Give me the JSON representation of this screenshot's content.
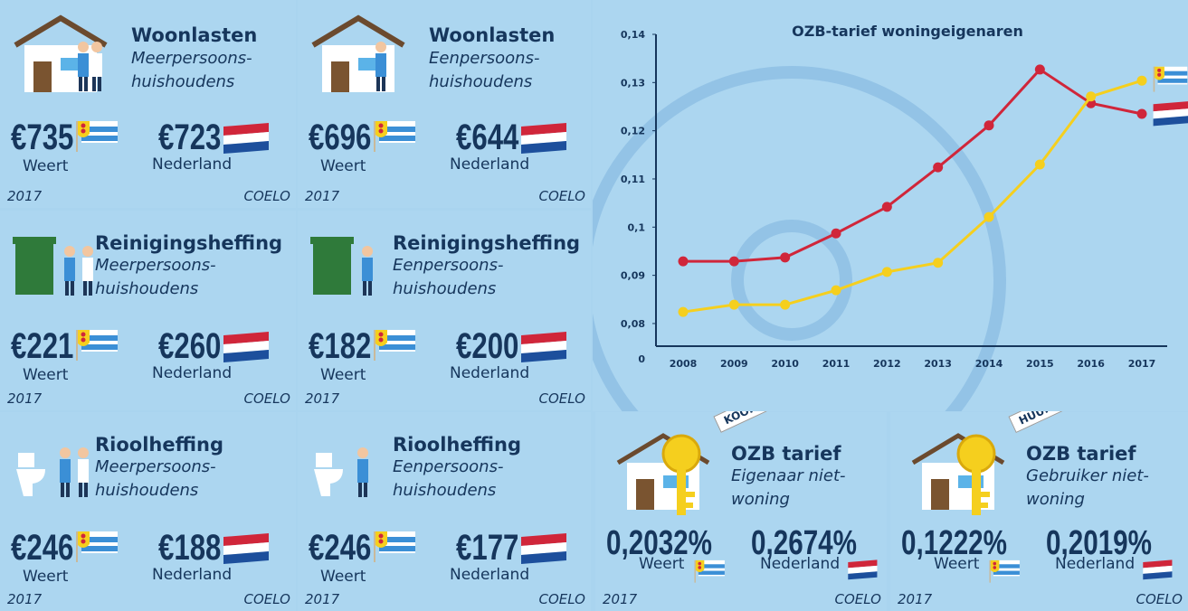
{
  "tiles": [
    {
      "title": "Woonlasten",
      "subtitle": [
        "Meerpersoons-",
        "huishoudens"
      ],
      "weert_amount": "€735",
      "weert_label": "Weert",
      "nl_amount": "€723",
      "nl_label": "Nederland",
      "year": "2017",
      "source": "COELO"
    },
    {
      "title": "Woonlasten",
      "subtitle": [
        "Eenpersoons-",
        "huishoudens"
      ],
      "weert_amount": "€696",
      "weert_label": "Weert",
      "nl_amount": "€644",
      "nl_label": "Nederland",
      "year": "2017",
      "source": "COELO"
    },
    {
      "title": "Reinigingsheffing",
      "subtitle": [
        "Meerpersoons-",
        "huishoudens"
      ],
      "weert_amount": "€221",
      "weert_label": "Weert",
      "nl_amount": "€260",
      "nl_label": "Nederland",
      "year": "2017",
      "source": "COELO"
    },
    {
      "title": "Reinigingsheffing",
      "subtitle": [
        "Eenpersoons-",
        "huishoudens"
      ],
      "weert_amount": "€182",
      "weert_label": "Weert",
      "nl_amount": "€200",
      "nl_label": "Nederland",
      "year": "2017",
      "source": "COELO"
    },
    {
      "title": "Rioolheffing",
      "subtitle": [
        "Meerpersoons-",
        "huishoudens"
      ],
      "weert_amount": "€246",
      "weert_label": "Weert",
      "nl_amount": "€188",
      "nl_label": "Nederland",
      "year": "2017",
      "source": "COELO"
    },
    {
      "title": "Rioolheffing",
      "subtitle": [
        "Eenpersoons-",
        "huishoudens"
      ],
      "weert_amount": "€246",
      "weert_label": "Weert",
      "nl_amount": "€177",
      "nl_label": "Nederland",
      "year": "2017",
      "source": "COELO"
    }
  ],
  "ozb_tiles": [
    {
      "tag": "KOOP",
      "title": "OZB tarief",
      "subtitle": [
        "Eigenaar niet-",
        "woning"
      ],
      "weert_amount": "0,2032%",
      "weert_label": "Weert",
      "nl_amount": "0,2674%",
      "nl_label": "Nederland",
      "year": "2017",
      "source": "COELO"
    },
    {
      "tag": "HUUR",
      "title": "OZB tarief",
      "subtitle": [
        "Gebruiker niet-",
        "woning"
      ],
      "weert_amount": "0,1222%",
      "weert_label": "Weert",
      "nl_amount": "0,2019%",
      "nl_label": "Nederland",
      "year": "2017",
      "source": "COELO"
    }
  ],
  "chart_data": {
    "type": "line",
    "title": "OZB-tarief woningeigenaren",
    "categories": [
      "2008",
      "2009",
      "2010",
      "2011",
      "2012",
      "2013",
      "2014",
      "2015",
      "2016",
      "2017"
    ],
    "series": [
      {
        "color": "#d0263a",
        "values": [
          0.0929,
          0.0929,
          0.0937,
          0.0987,
          0.1042,
          0.1124,
          0.1211,
          0.1327,
          0.1257,
          0.1235
        ]
      },
      {
        "color": "#f5cf1e",
        "values": [
          0.0824,
          0.0839,
          0.0839,
          0.0869,
          0.0907,
          0.0926,
          0.1021,
          0.113,
          0.1271,
          0.1304
        ]
      }
    ],
    "ylim": [
      0.0753,
      0.14
    ],
    "yticks": [
      {
        "value": 0.08,
        "label": "0,08"
      },
      {
        "value": 0.09,
        "label": "0,09"
      },
      {
        "value": 0.1,
        "label": "0,1"
      },
      {
        "value": 0.11,
        "label": "0,11"
      },
      {
        "value": 0.12,
        "label": "0,12"
      },
      {
        "value": 0.13,
        "label": "0,13"
      },
      {
        "value": 0.14,
        "label": "0,14"
      }
    ],
    "y_origin_label": "0"
  }
}
